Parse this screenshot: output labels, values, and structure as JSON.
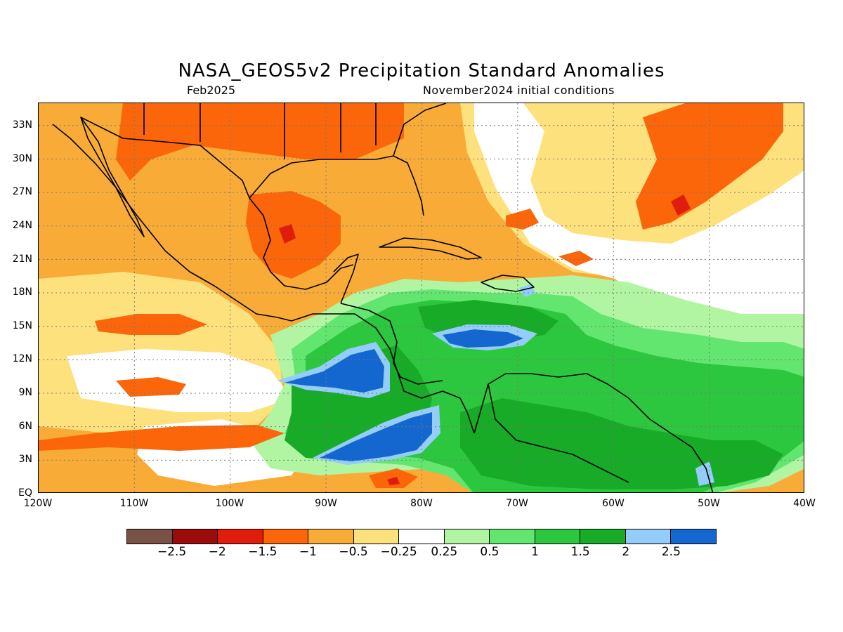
{
  "title": "NASA_GEOS5v2 Precipitation Standard Anomalies",
  "subtitle_left": "Feb2025",
  "subtitle_right": "November2024 initial conditions",
  "map": {
    "lon_range": [
      -120,
      -40
    ],
    "lat_range": [
      0,
      35
    ],
    "lat_ticks": [
      "33N",
      "30N",
      "27N",
      "24N",
      "21N",
      "18N",
      "15N",
      "12N",
      "9N",
      "6N",
      "3N",
      "EQ"
    ],
    "lon_ticks": [
      "120W",
      "110W",
      "100W",
      "90W",
      "80W",
      "70W",
      "60W",
      "50W",
      "40W"
    ],
    "grid": "dotted",
    "colors": {
      "very_dry": "#d95f0e",
      "dry": "#f9ab38",
      "slightly_dry": "#fde17d",
      "neutral": "#ffffff",
      "slightly_wet": "#b1f5a3",
      "wet": "#62e66f",
      "wetter": "#2dc73f",
      "very_wet": "#17ab28",
      "extreme_wet_light": "#94cdf9",
      "extreme_wet": "#1567d0",
      "strong_dry": "#e01d0c"
    }
  },
  "colorbar": {
    "labels": [
      "-2.5",
      "-2",
      "-1.5",
      "-1",
      "-0.5",
      "-0.25",
      "0.25",
      "0.5",
      "1",
      "1.5",
      "2",
      "2.5"
    ],
    "colors": [
      "#7a5146",
      "#9b0b0b",
      "#e01d0c",
      "#fa6609",
      "#f9ab38",
      "#fde17d",
      "#ffffff",
      "#b1f5a3",
      "#62e66f",
      "#2dc73f",
      "#17ab28",
      "#94cdf9",
      "#1567d0"
    ]
  }
}
